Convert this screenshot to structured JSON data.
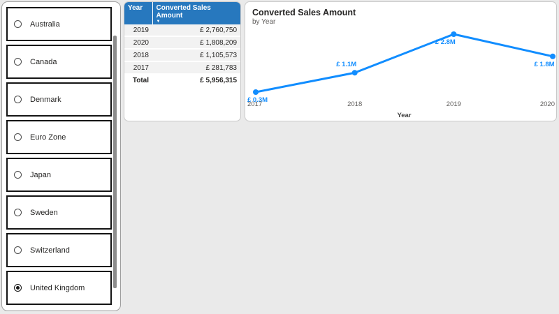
{
  "colors": {
    "accent_blue": "#118DFF",
    "table_header_blue": "#2778BE",
    "page_background": "#eaeaea",
    "panel_background": "#ffffff",
    "row_background": "#f2f2f2",
    "text_dark": "#252423",
    "text_gray": "#605E5C"
  },
  "slicer": {
    "options": [
      {
        "label": "Australia",
        "selected": false
      },
      {
        "label": "Canada",
        "selected": false
      },
      {
        "label": "Denmark",
        "selected": false
      },
      {
        "label": "Euro Zone",
        "selected": false
      },
      {
        "label": "Japan",
        "selected": false
      },
      {
        "label": "Sweden",
        "selected": false
      },
      {
        "label": "Switzerland",
        "selected": false
      },
      {
        "label": "United Kingdom",
        "selected": true
      }
    ]
  },
  "table": {
    "columns": [
      "Year",
      "Converted Sales Amount"
    ],
    "sort_icon": "▼",
    "sorted_column": "Converted Sales Amount",
    "rows": [
      {
        "year": "2019",
        "amount": "£ 2,760,750"
      },
      {
        "year": "2020",
        "amount": "£ 1,808,209"
      },
      {
        "year": "2018",
        "amount": "£ 1,105,573"
      },
      {
        "year": "2017",
        "amount": "£ 281,783"
      }
    ],
    "total": {
      "label": "Total",
      "amount": "£ 5,956,315"
    }
  },
  "chart_data": [
    {
      "type": "line",
      "title": "Converted Sales Amount",
      "subtitle": "by Year",
      "xlabel": "Year",
      "ylabel": "",
      "x": [
        "2017",
        "2018",
        "2019",
        "2020"
      ],
      "series": [
        {
          "name": "Converted Sales Amount",
          "values_millions": [
            0.28,
            1.11,
            2.76,
            1.81
          ]
        }
      ],
      "data_labels": [
        "£ 0.3M",
        "£ 1.1M",
        "£ 2.8M",
        "£ 1.8M"
      ],
      "label_positions": [
        "below",
        "above",
        "below",
        "below"
      ],
      "line_color": "#118DFF",
      "grid": false,
      "legend": false,
      "y_axis_shown": false
    },
    {
      "type": "table",
      "columns": [
        "Year",
        "Converted Sales Amount"
      ],
      "rows": [
        [
          "2019",
          2760750
        ],
        [
          "2020",
          1808209
        ],
        [
          "2018",
          1105573
        ],
        [
          "2017",
          281783
        ]
      ],
      "total": [
        "Total",
        5956315
      ],
      "currency": "£"
    }
  ]
}
